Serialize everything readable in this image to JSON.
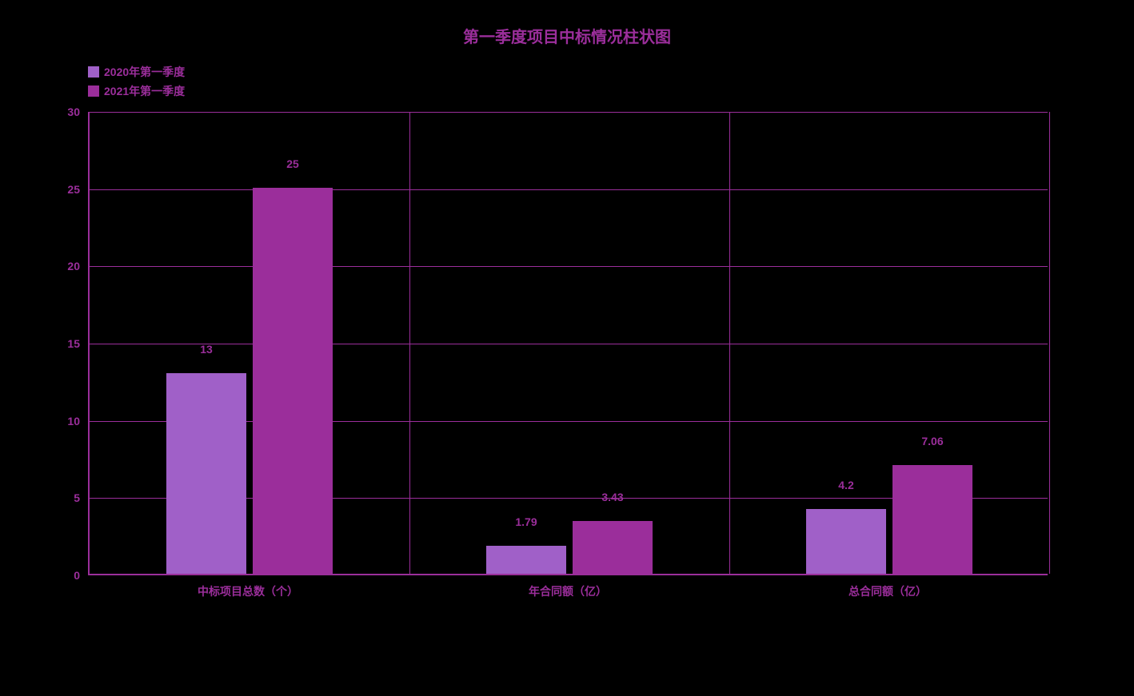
{
  "chart": {
    "type": "bar",
    "title": "第一季度项目中标情况柱状图",
    "title_fontsize": 20,
    "title_color": "#9b2e9b",
    "background_color": "#000000",
    "plot_border_color": "#9b2e9b",
    "grid_color": "#9b2e9b",
    "axis_color": "#9b2e9b",
    "tick_label_color": "#9b2e9b",
    "tick_fontsize": 14,
    "legend": {
      "items": [
        {
          "label": "2020年第一季度",
          "color": "#a060c8"
        },
        {
          "label": "2021年第一季度",
          "color": "#9b2e9b"
        }
      ],
      "label_color": "#9b2e9b",
      "fontsize": 14
    },
    "categories": [
      "中标项目总数（个）",
      "年合同额（亿）",
      "总合同额（亿）"
    ],
    "series": [
      {
        "name": "2020年第一季度",
        "color": "#a060c8",
        "values": [
          13,
          1.79,
          4.2
        ],
        "labels": [
          "13",
          "1.79",
          "4.2"
        ]
      },
      {
        "name": "2021年第一季度",
        "color": "#9b2e9b",
        "values": [
          25,
          3.43,
          7.06
        ],
        "labels": [
          "25",
          "3.43",
          "7.06"
        ]
      }
    ],
    "bar_label_color": "#9b2e9b",
    "bar_label_fontsize": 14,
    "ylim": [
      0,
      30
    ],
    "ytick_step": 5,
    "group_count": 3,
    "bar_width_ratio": 0.25,
    "bar_gap_ratio": 0.02
  }
}
